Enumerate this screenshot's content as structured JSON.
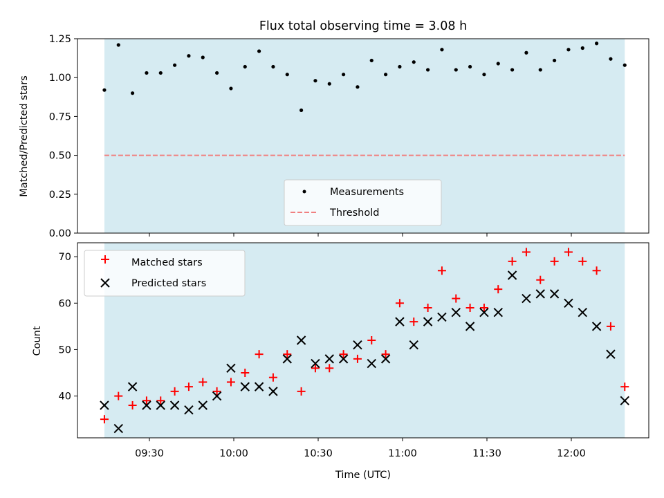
{
  "title": "Flux total observing time = 3.08 h",
  "colors": {
    "span": "#add8e6",
    "matched": "#ff0000",
    "predicted": "#000000",
    "threshold": "#f08080",
    "measurement": "#000000"
  },
  "chart_data": [
    {
      "type": "scatter",
      "title": "Flux total observing time = 3.08 h",
      "ylabel": "Matched/Predicted stars",
      "xlabel": "",
      "ylim": [
        0,
        1.25
      ],
      "yticks": [
        "0.00",
        "0.25",
        "0.50",
        "0.75",
        "1.00",
        "1.25"
      ],
      "shaded_span": [
        "09:14",
        "12:19"
      ],
      "series": [
        {
          "name": "Measurements",
          "x": [
            "09:14",
            "09:19",
            "09:24",
            "09:29",
            "09:34",
            "09:39",
            "09:44",
            "09:49",
            "09:54",
            "09:59",
            "10:04",
            "10:09",
            "10:14",
            "10:19",
            "10:24",
            "10:29",
            "10:34",
            "10:39",
            "10:44",
            "10:49",
            "10:54",
            "10:59",
            "11:04",
            "11:09",
            "11:14",
            "11:19",
            "11:24",
            "11:29",
            "11:34",
            "11:39",
            "11:44",
            "11:49",
            "11:54",
            "11:59",
            "12:04",
            "12:09",
            "12:14",
            "12:19"
          ],
          "y": [
            0.92,
            1.21,
            0.9,
            1.03,
            1.03,
            1.08,
            1.14,
            1.13,
            1.03,
            0.93,
            1.07,
            1.17,
            1.07,
            1.02,
            0.79,
            0.98,
            0.96,
            1.02,
            0.94,
            1.11,
            1.02,
            1.07,
            1.1,
            1.05,
            1.18,
            1.05,
            1.07,
            1.02,
            1.09,
            1.05,
            1.16,
            1.05,
            1.11,
            1.18,
            1.19,
            1.22,
            1.12,
            1.08
          ]
        },
        {
          "name": "Threshold",
          "type": "hline",
          "y": 0.5
        }
      ],
      "legend": {
        "placement": "bottom-center",
        "items": [
          "Measurements",
          "Threshold"
        ]
      }
    },
    {
      "type": "scatter",
      "title": "",
      "xlabel": "Time (UTC)",
      "ylabel": "Count",
      "xticks": [
        "09:30",
        "10:00",
        "10:30",
        "11:00",
        "11:30",
        "12:00"
      ],
      "yticks": [
        "40",
        "50",
        "60",
        "70"
      ],
      "ylim": [
        31,
        73
      ],
      "series": [
        {
          "name": "Matched stars",
          "marker": "+",
          "x": [
            "09:14",
            "09:19",
            "09:24",
            "09:29",
            "09:34",
            "09:39",
            "09:44",
            "09:49",
            "09:54",
            "09:59",
            "10:04",
            "10:09",
            "10:14",
            "10:19",
            "10:24",
            "10:29",
            "10:34",
            "10:39",
            "10:44",
            "10:49",
            "10:54",
            "10:59",
            "11:04",
            "11:09",
            "11:14",
            "11:19",
            "11:24",
            "11:29",
            "11:34",
            "11:39",
            "11:44",
            "11:49",
            "11:54",
            "11:59",
            "12:04",
            "12:09",
            "12:14",
            "12:19"
          ],
          "y": [
            35,
            40,
            38,
            39,
            39,
            41,
            42,
            43,
            41,
            43,
            45,
            49,
            44,
            49,
            41,
            46,
            46,
            49,
            48,
            52,
            49,
            60,
            56,
            59,
            67,
            61,
            59,
            59,
            63,
            69,
            71,
            65,
            69,
            71,
            69,
            67,
            55,
            42
          ]
        },
        {
          "name": "Predicted stars",
          "marker": "x",
          "x": [
            "09:14",
            "09:19",
            "09:24",
            "09:29",
            "09:34",
            "09:39",
            "09:44",
            "09:49",
            "09:54",
            "09:59",
            "10:04",
            "10:09",
            "10:14",
            "10:19",
            "10:24",
            "10:29",
            "10:34",
            "10:39",
            "10:44",
            "10:49",
            "10:54",
            "10:59",
            "11:04",
            "11:09",
            "11:14",
            "11:19",
            "11:24",
            "11:29",
            "11:34",
            "11:39",
            "11:44",
            "11:49",
            "11:54",
            "11:59",
            "12:04",
            "12:09",
            "12:14",
            "12:19"
          ],
          "y": [
            38,
            33,
            42,
            38,
            38,
            38,
            37,
            38,
            40,
            46,
            42,
            42,
            41,
            48,
            52,
            47,
            48,
            48,
            51,
            47,
            48,
            56,
            51,
            56,
            57,
            58,
            55,
            58,
            58,
            66,
            61,
            62,
            62,
            60,
            58,
            55,
            49,
            39
          ]
        }
      ],
      "legend": {
        "placement": "top-left",
        "items": [
          "Matched stars",
          "Predicted stars"
        ]
      }
    }
  ]
}
